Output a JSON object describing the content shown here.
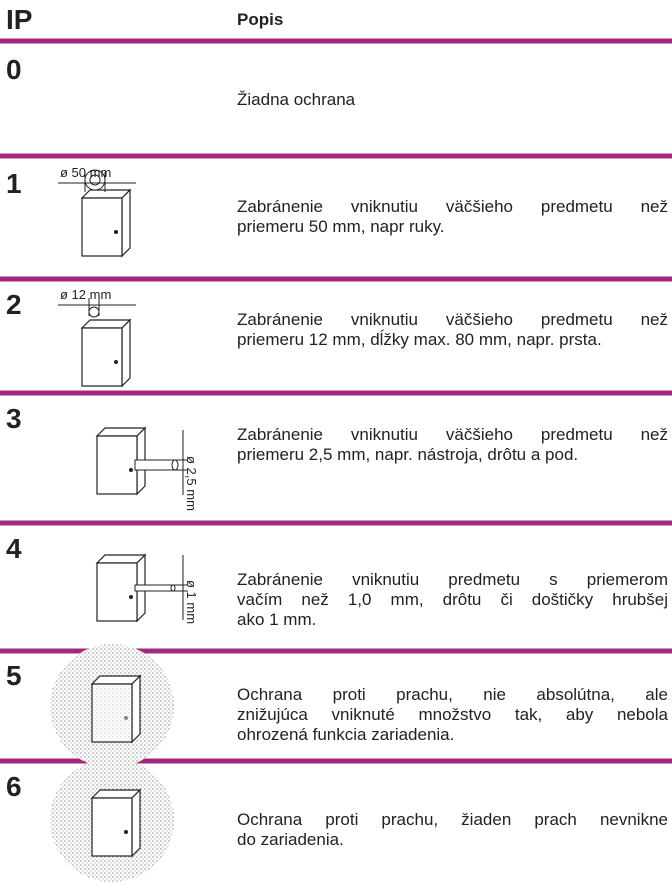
{
  "header": {
    "code": "IP",
    "description": "Popis"
  },
  "rows": [
    {
      "code": "0",
      "description": [
        "Žiadna ochrana"
      ]
    },
    {
      "code": "1",
      "label": "ø 50 mm",
      "description": [
        "Zabránenie vniknutiu väčšieho predmetu než",
        "priemeru 50 mm, napr ruky."
      ]
    },
    {
      "code": "2",
      "label": "ø 12 mm",
      "description": [
        "Zabránenie vniknutiu väčšieho predmetu než",
        "priemeru 12 mm, dĺžky max. 80 mm, napr. prsta."
      ]
    },
    {
      "code": "3",
      "label": "ø 2,5 mm",
      "description": [
        "Zabránenie vniknutiu väčšieho predmetu než",
        "priemeru 2,5 mm, napr. nástroja, drôtu a pod."
      ]
    },
    {
      "code": "4",
      "label": "ø 1 mm",
      "description": [
        "Zabránenie vniknutiu predmetu s priemerom",
        "vačím než 1,0 mm, drôtu či doštičky hrubšej",
        "ako 1 mm."
      ]
    },
    {
      "code": "5",
      "description": [
        "Ochrana proti prachu, nie absolútna, ale",
        "znižujúca vniknuté množstvo tak, aby nebola",
        "ohrozená funkcia zariadenia."
      ]
    },
    {
      "code": "6",
      "description": [
        "Ochrana proti prachu, žiaden prach nevnikne",
        "do zariadenia."
      ]
    }
  ]
}
